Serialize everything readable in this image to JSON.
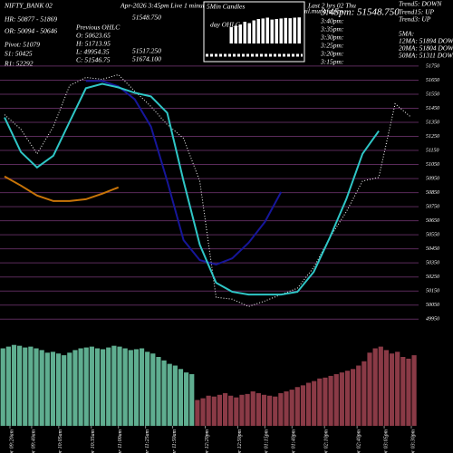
{
  "header": {
    "symbol": "NIFTY_BANK 02",
    "title": "Apr-2026 3:45pm Live 1 minut",
    "title_end": "e",
    "site": "charts mail.munafa.pro",
    "levels": [
      "HR: 50877 - 51869",
      "OR: 50094 - 50646",
      "Pivot: 51079",
      "S1: 50425",
      "R1: 52292"
    ],
    "previous_ohlc": [
      "Previous OHLC",
      "O: 50623.65",
      "H: 51713.95",
      "L: 49954.35",
      "C: 51546.75"
    ],
    "today_values": [
      "51548.750",
      "51517.250",
      "51674.100"
    ],
    "candles_box": [
      "5Min Candles",
      "day OHLC"
    ],
    "last_hours": "Last 2 hrs 02 Thu",
    "last_price": "3:45pm: 51548.750",
    "times": [
      "3:40pm:",
      "3:35pm:",
      "3:30pm:",
      "3:25pm:",
      "3:20pm:",
      "3:15pm:"
    ],
    "trends": [
      "Trend5: DOWN",
      "Trend15: UP",
      "Trend3: UP",
      "5MA:",
      "12MA: 51894 DOWN",
      "20MA: 51804 DOWN",
      "50MA: 51311 DOWN"
    ]
  },
  "chart_data": [
    {
      "type": "line",
      "x": [
        0,
        15,
        30,
        45,
        60,
        75,
        90,
        105,
        120,
        135,
        150,
        165,
        180,
        195,
        210,
        225,
        240,
        255,
        270,
        285,
        300,
        315,
        330,
        345,
        360,
        375
      ],
      "xlim": [
        0,
        380
      ],
      "ylim": [
        49900,
        52220
      ],
      "yticks": [
        49950,
        50050,
        50150,
        50250,
        50350,
        50450,
        50550,
        50650,
        50750,
        50850,
        50950,
        51050,
        51150,
        51250,
        51350,
        51450,
        51550,
        51650,
        51750
      ],
      "xticks": [
        {
          "value": 5,
          "label": "02 Apr 09:20am"
        },
        {
          "value": 25,
          "label": "02 Apr 09:40am"
        },
        {
          "value": 50,
          "label": "02 Apr 10:05am"
        },
        {
          "value": 80,
          "label": "02 Apr 10:35am"
        },
        {
          "value": 105,
          "label": "02 Apr 11:00am"
        },
        {
          "value": 130,
          "label": "02 Apr 11:25am"
        },
        {
          "value": 155,
          "label": "02 Apr 11:50am"
        },
        {
          "value": 185,
          "label": "02 Apr 12:20pm"
        },
        {
          "value": 215,
          "label": "02 Apr 12:50pm"
        },
        {
          "value": 240,
          "label": "02 Apr 01:15pm"
        },
        {
          "value": 265,
          "label": "02 Apr 01:40pm"
        },
        {
          "value": 295,
          "label": "02 Apr 02:10pm"
        },
        {
          "value": 325,
          "label": "02 Apr 02:40pm"
        },
        {
          "value": 350,
          "label": "02 Apr 03:05pm"
        },
        {
          "value": 375,
          "label": "02 Apr 03:30pm"
        }
      ],
      "grid": true,
      "series": [
        {
          "color": "#ffffff",
          "dotted": true,
          "values": [
            51404,
            51301,
            51126,
            51320,
            51611,
            51669,
            51656,
            51689,
            51572,
            51463,
            51333,
            51236,
            50932,
            50105,
            50092,
            50040,
            50079,
            50125,
            50170,
            50318,
            50532,
            50713,
            50932,
            50958,
            51482,
            51385
          ]
        },
        {
          "color": "#c87408",
          "values": [
            50965,
            50900,
            50829,
            50790,
            50790,
            50803,
            50842,
            50887,
            null,
            null,
            null,
            null,
            null,
            null,
            null,
            null,
            null,
            null,
            null,
            null,
            null,
            null,
            null,
            null,
            null,
            null
          ]
        },
        {
          "color": "#16169a",
          "values": [
            null,
            null,
            null,
            null,
            null,
            51644,
            51644,
            51605,
            51514,
            51320,
            50932,
            50512,
            50370,
            50338,
            50383,
            50493,
            50642,
            50855,
            null,
            null,
            null,
            null,
            null,
            null,
            null,
            null
          ]
        },
        {
          "color": "#2fc6c6",
          "values": [
            51385,
            51139,
            51029,
            51113,
            51353,
            51592,
            51624,
            51598,
            51560,
            51534,
            51417,
            50932,
            50480,
            50209,
            50144,
            50125,
            50125,
            50125,
            50144,
            50286,
            50532,
            50803,
            51126,
            51288,
            null,
            null
          ]
        }
      ]
    },
    {
      "type": "bar",
      "ylim": [
        0,
        100
      ],
      "series": [
        {
          "color": "#5fae90",
          "values": [
            90,
            92,
            94,
            93,
            91,
            92,
            90,
            88,
            85,
            86,
            84,
            82,
            85,
            88,
            90,
            91,
            92,
            90,
            89,
            91,
            93,
            92,
            90,
            88,
            89,
            90,
            86,
            84,
            80,
            76,
            72,
            70,
            66,
            62,
            60,
            null,
            null,
            null,
            null,
            null,
            null,
            null,
            null,
            null,
            null,
            null,
            null,
            null,
            null,
            null,
            null,
            null,
            null,
            null,
            null,
            null,
            null,
            null,
            null,
            null,
            null,
            null,
            null,
            null,
            null,
            null,
            null,
            null,
            null,
            null,
            null,
            null,
            null,
            null,
            null
          ]
        },
        {
          "color": "#8a3a46",
          "values": [
            null,
            null,
            null,
            null,
            null,
            null,
            null,
            null,
            null,
            null,
            null,
            null,
            null,
            null,
            null,
            null,
            null,
            null,
            null,
            null,
            null,
            null,
            null,
            null,
            null,
            null,
            null,
            null,
            null,
            null,
            null,
            null,
            null,
            null,
            null,
            30,
            32,
            35,
            34,
            36,
            38,
            35,
            33,
            36,
            37,
            40,
            38,
            36,
            35,
            34,
            38,
            40,
            42,
            45,
            47,
            50,
            52,
            55,
            56,
            58,
            60,
            62,
            64,
            66,
            70,
            75,
            85,
            90,
            92,
            88,
            84,
            86,
            80,
            78,
            82
          ]
        }
      ]
    },
    {
      "type": "bar",
      "ylim": [
        0,
        100
      ],
      "series": [
        {
          "color": "#ffffff",
          "values": [
            60,
            65,
            70,
            80,
            75,
            85,
            90,
            92,
            95,
            88,
            90,
            92,
            94,
            93,
            95,
            96
          ]
        }
      ]
    }
  ]
}
